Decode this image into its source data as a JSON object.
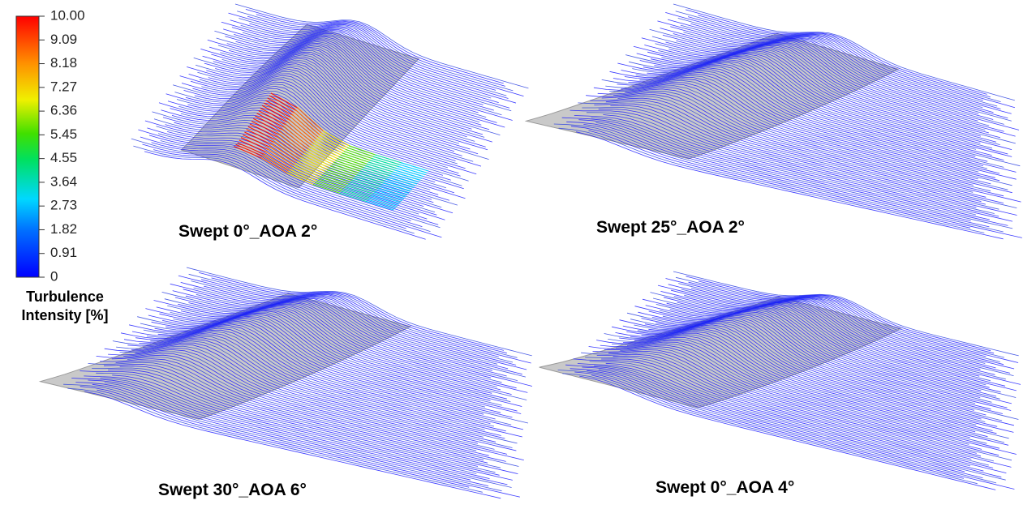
{
  "colorbar": {
    "ticks": [
      "10.00",
      "9.09",
      "8.18",
      "7.27",
      "6.36",
      "5.45",
      "4.55",
      "3.64",
      "2.73",
      "1.82",
      "0.91",
      "0"
    ],
    "title": [
      "Turbulence",
      "Intensity [%]"
    ]
  },
  "panels": [
    {
      "label": "Swept 0°_AOA 2°"
    },
    {
      "label": "Swept 25°_AOA 2°"
    },
    {
      "label": "Swept 30°_AOA 6°"
    },
    {
      "label": "Swept 0°_AOA 4°"
    }
  ]
}
